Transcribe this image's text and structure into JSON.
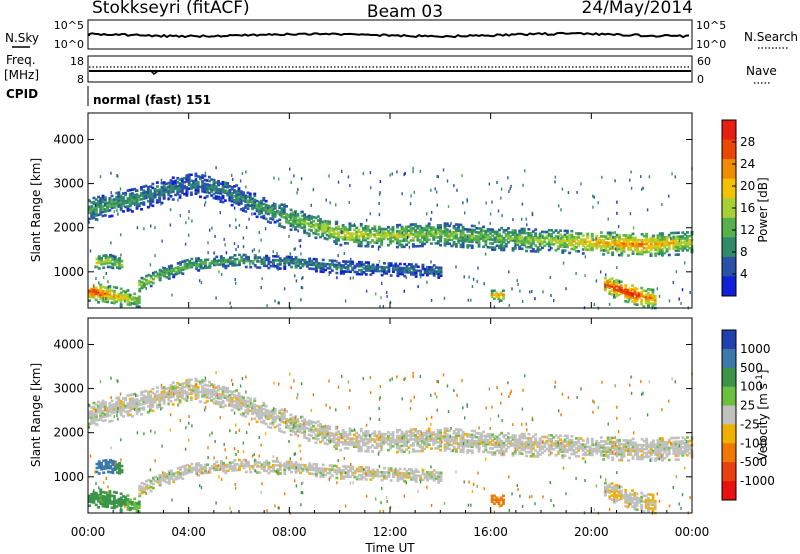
{
  "header": {
    "station": "Stokkseyri (fitACF)",
    "beam": "Beam 03",
    "date": "24/May/2014"
  },
  "side_labels": {
    "nsky": "N.Sky",
    "freq": "Freq.",
    "mhz": "[MHz]",
    "cpid": "CPID",
    "nsearch": "N.Search",
    "nave": "Nave",
    "nsky_ticks": [
      "10^5",
      "10^0"
    ],
    "nsearch_ticks": [
      "10^5",
      "10^0"
    ],
    "freq_ticks": [
      "18",
      "8"
    ],
    "nave_ticks": [
      "60",
      "0"
    ]
  },
  "cpid_text": "normal (fast) 151",
  "colors": {
    "velocity_ground": "#c0c0be",
    "power_scale": [
      "#1020d8",
      "#2a52a8",
      "#2f8a6a",
      "#56b04c",
      "#a8d034",
      "#f2c200",
      "#f08c00",
      "#e84800",
      "#e81e12"
    ],
    "velocity_scale": [
      "#2040b0",
      "#3c78a8",
      "#3c9448",
      "#6cc040",
      "#c0c0be",
      "#f0b000",
      "#f07800",
      "#e84010",
      "#e81010"
    ]
  },
  "chart_data": [
    {
      "type": "heatmap",
      "panel": "power",
      "ylabel": "Slant Range [km]",
      "yticks": [
        "4000",
        "3000",
        "2000",
        "1000"
      ],
      "ylim": [
        180,
        4600
      ],
      "colorbar_label": "Power [dB]",
      "colorbar_ticks": [
        "28",
        "24",
        "20",
        "16",
        "12",
        "8",
        "4"
      ],
      "colorbar_range": [
        0,
        32
      ],
      "bands": [
        {
          "x": [
            0,
            2,
            4,
            5.5,
            7,
            8.5,
            10,
            12,
            14,
            16,
            18,
            20,
            22,
            24
          ],
          "center": [
            2400,
            2650,
            3000,
            2800,
            2400,
            2100,
            1850,
            1800,
            1850,
            1750,
            1700,
            1650,
            1600,
            1650
          ],
          "width": 260,
          "db": [
            10,
            8,
            6,
            7,
            9,
            12,
            15,
            14,
            12,
            11,
            13,
            18,
            20,
            14
          ]
        },
        {
          "x": [
            2,
            3,
            4,
            6,
            8,
            10,
            12,
            14
          ],
          "center": [
            700,
            950,
            1150,
            1250,
            1200,
            1100,
            1050,
            1000
          ],
          "width": 150,
          "db": [
            14,
            12,
            10,
            9,
            8,
            7,
            6,
            6
          ]
        },
        {
          "x": [
            0,
            0.5,
            1,
            1.5,
            2
          ],
          "center": [
            550,
            500,
            450,
            380,
            320
          ],
          "width": 220,
          "db": [
            24,
            22,
            18,
            16,
            12
          ]
        },
        {
          "x": [
            20.5,
            21,
            21.5,
            22,
            22.5
          ],
          "center": [
            700,
            600,
            500,
            420,
            380
          ],
          "width": 220,
          "db": [
            22,
            24,
            26,
            22,
            18
          ]
        },
        {
          "x": [
            16,
            16.5
          ],
          "center": [
            450,
            450
          ],
          "width": 120,
          "db": [
            18,
            20
          ]
        },
        {
          "x": [
            0.3,
            0.8,
            1.3
          ],
          "center": [
            1200,
            1250,
            1150
          ],
          "width": 150,
          "db": [
            16,
            14,
            12
          ]
        }
      ]
    },
    {
      "type": "heatmap",
      "panel": "velocity",
      "xlabel": "Time UT",
      "xticks": [
        "00:00",
        "04:00",
        "08:00",
        "12:00",
        "16:00",
        "20:00",
        "00:00"
      ],
      "xlim": [
        0,
        24
      ],
      "ylabel": "Slant Range [km]",
      "yticks": [
        "4000",
        "3000",
        "2000",
        "1000"
      ],
      "ylim": [
        180,
        4600
      ],
      "colorbar_label": "Velocity [m s^-1]",
      "colorbar_ticks": [
        "1000",
        "500",
        "100",
        "25",
        "-25",
        "-100",
        "-500",
        "-1000"
      ],
      "bands": [
        {
          "x": [
            0,
            2,
            4,
            5.5,
            7,
            8.5,
            10,
            12,
            14,
            16,
            18,
            20,
            22,
            24
          ],
          "center": [
            2400,
            2650,
            3000,
            2800,
            2400,
            2100,
            1850,
            1800,
            1850,
            1750,
            1700,
            1650,
            1600,
            1650
          ],
          "width": 260,
          "vel": [
            0,
            0,
            0,
            0,
            0,
            0,
            0,
            0,
            0,
            0,
            0,
            0,
            0,
            0
          ]
        },
        {
          "x": [
            2,
            3,
            4,
            6,
            8,
            10,
            12,
            14
          ],
          "center": [
            700,
            950,
            1150,
            1250,
            1200,
            1100,
            1050,
            1000
          ],
          "width": 150,
          "vel": [
            0,
            0,
            0,
            0,
            0,
            0,
            0,
            0
          ]
        },
        {
          "x": [
            0,
            0.5,
            1,
            1.5,
            2
          ],
          "center": [
            550,
            500,
            450,
            380,
            320
          ],
          "width": 220,
          "vel": [
            150,
            120,
            200,
            100,
            80
          ]
        },
        {
          "x": [
            20.5,
            21,
            21.5,
            22,
            22.5
          ],
          "center": [
            700,
            600,
            500,
            420,
            380
          ],
          "width": 220,
          "vel": [
            0,
            -30,
            0,
            0,
            -40
          ]
        },
        {
          "x": [
            16,
            16.5
          ],
          "center": [
            450,
            450
          ],
          "width": 120,
          "vel": [
            -180,
            -200
          ]
        },
        {
          "x": [
            0.3,
            0.8,
            1.3
          ],
          "center": [
            1200,
            1250,
            1150
          ],
          "width": 150,
          "vel": [
            600,
            800,
            300
          ]
        }
      ]
    }
  ]
}
